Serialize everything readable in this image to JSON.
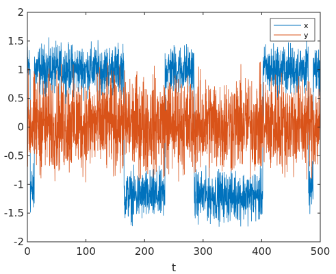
{
  "chart_data": {
    "type": "line",
    "title": "",
    "xlabel": "t",
    "ylabel": "",
    "xlim": [
      0,
      500
    ],
    "ylim": [
      -2,
      2
    ],
    "xticks": [
      0,
      100,
      200,
      300,
      400,
      500
    ],
    "yticks": [
      -2,
      -1.5,
      -1,
      -0.5,
      0,
      0.5,
      1,
      1.5,
      2
    ],
    "grid": false,
    "legend_position": "top-right",
    "series": [
      {
        "name": "x",
        "color": "#0072BD",
        "description": "noisy two-state switching signal",
        "states": [
          {
            "t_start": 0,
            "t_end": 5,
            "level": 1.05
          },
          {
            "t_start": 5,
            "t_end": 12,
            "level": -1.1
          },
          {
            "t_start": 12,
            "t_end": 165,
            "level": 1.0
          },
          {
            "t_start": 165,
            "t_end": 235,
            "level": -1.2
          },
          {
            "t_start": 235,
            "t_end": 285,
            "level": 1.0
          },
          {
            "t_start": 285,
            "t_end": 402,
            "level": -1.2
          },
          {
            "t_start": 402,
            "t_end": 480,
            "level": 1.0
          },
          {
            "t_start": 480,
            "t_end": 488,
            "level": -1.1
          },
          {
            "t_start": 488,
            "t_end": 500,
            "level": 1.0
          }
        ],
        "noise_amplitude": 0.35
      },
      {
        "name": "y",
        "color": "#D95319",
        "description": "noise centered near 0",
        "mean": 0.05,
        "noise_amplitude": 0.55
      }
    ]
  }
}
